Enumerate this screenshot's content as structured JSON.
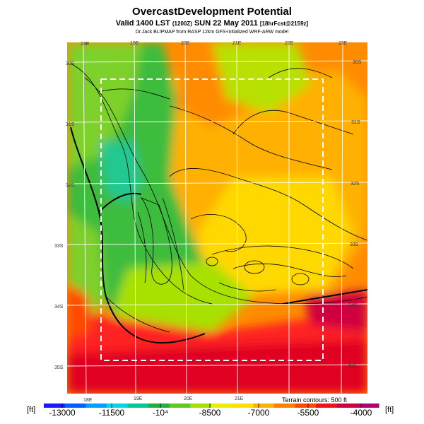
{
  "header": {
    "title": "OvercastDevelopment Potential",
    "valid": "Valid 1400 LST",
    "utc": "(1200Z)",
    "date": "SUN 22 May 2011",
    "fcst": "[18hrFcst@2159z]",
    "credit": "Dr.Jack BLIPMAP from RASP 12km GFS-initialized WRF-ARW model"
  },
  "map": {
    "lon_labels_top": [
      "18E",
      "19E",
      "20E",
      "21E",
      "22E",
      "23E"
    ],
    "lon_labels_bottom": [
      "18E",
      "19E",
      "20E",
      "21E"
    ],
    "lat_labels_left": [
      "30S",
      "31S",
      "32S",
      "33S",
      "34S",
      "35S"
    ],
    "lat_labels_right": [
      "30S",
      "31S",
      "32S",
      "33S",
      "34S",
      "35S"
    ],
    "terrain_note": "Terrain contours: 500 ft",
    "colors": {
      "water_deep": "#e00020",
      "red": "#ff2020",
      "orange": "#ff8c00",
      "yellow": "#ffd800",
      "lime": "#b8e000",
      "green": "#3cbc3c",
      "teal": "#20c890",
      "domain_box": "#ffffff"
    }
  },
  "colorbar": {
    "unit_left": "[ft]",
    "unit_right": "[ft]",
    "tick_labels": [
      "-13000",
      "-11500",
      "-10⁴",
      "-8500",
      "-7000",
      "-5500",
      "-4000"
    ],
    "scale_colors": [
      "#1a1aff",
      "#0060ff",
      "#00a0ff",
      "#00d8e8",
      "#00c890",
      "#20b040",
      "#60c820",
      "#a8e000",
      "#e8f000",
      "#ffe000",
      "#ffb000",
      "#ff8000",
      "#ff4800",
      "#f01020",
      "#d00040",
      "#b00070"
    ]
  }
}
